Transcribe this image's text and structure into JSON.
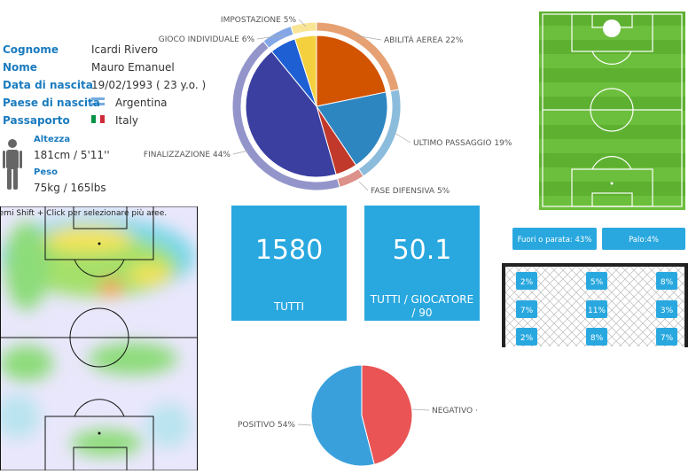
{
  "player": {
    "fields": [
      {
        "label": "Cognome",
        "value": "Icardi Rivero"
      },
      {
        "label": "Nome",
        "value": "Mauro Emanuel"
      },
      {
        "label": "Data di nascita",
        "value": "19/02/1993 ( 23 y.o. )"
      },
      {
        "label": "Paese di nascita",
        "value": "Argentina"
      },
      {
        "label": "Passaporto",
        "value": "Italy"
      }
    ],
    "body": [
      {
        "label": "Altezza",
        "value": "181cm / 5'11''"
      },
      {
        "label": "Peso",
        "value": "75kg / 165lbs"
      }
    ]
  },
  "chart_data": [
    {
      "type": "pie",
      "categories": [
        "ABILITÀ AEREA",
        "ULTIMO PASSAGGIO",
        "FASE DIFENSIVA",
        "FINALIZZAZIONE",
        "GIOCO INDIVIDUALE",
        "IMPOSTAZIONE"
      ],
      "values": [
        22,
        19,
        5,
        44,
        6,
        5
      ],
      "value_labels": [
        "22%",
        "19%",
        "5%",
        "44%",
        "6%",
        "5%"
      ],
      "colors": [
        "#d35400",
        "#2e86c1",
        "#c0392b",
        "#3b3fa0",
        "#1f5fd4",
        "#f4d03f"
      ]
    },
    {
      "type": "pie",
      "categories": [
        "NEGATIVO",
        "POSITIVO"
      ],
      "values": [
        46,
        54
      ],
      "value_labels": [
        "·",
        "54%"
      ],
      "colors": [
        "#ea5455",
        "#3aa0dc"
      ]
    }
  ],
  "heatmap": {
    "hint": "Premi Shift + Click per selezionare più aree."
  },
  "tiles": [
    {
      "value": 1580,
      "label": "TUTTI"
    },
    {
      "value": 50.1,
      "label": "TUTTI / GIOCATORE / 90"
    }
  ],
  "goal": {
    "buttons": [
      "Fuori o parata: 43%",
      "Palo:4%"
    ],
    "grid": [
      [
        "2%",
        "5%",
        "8%"
      ],
      [
        "7%",
        "11%",
        "3%"
      ],
      [
        "2%",
        "8%",
        "7%"
      ]
    ]
  }
}
